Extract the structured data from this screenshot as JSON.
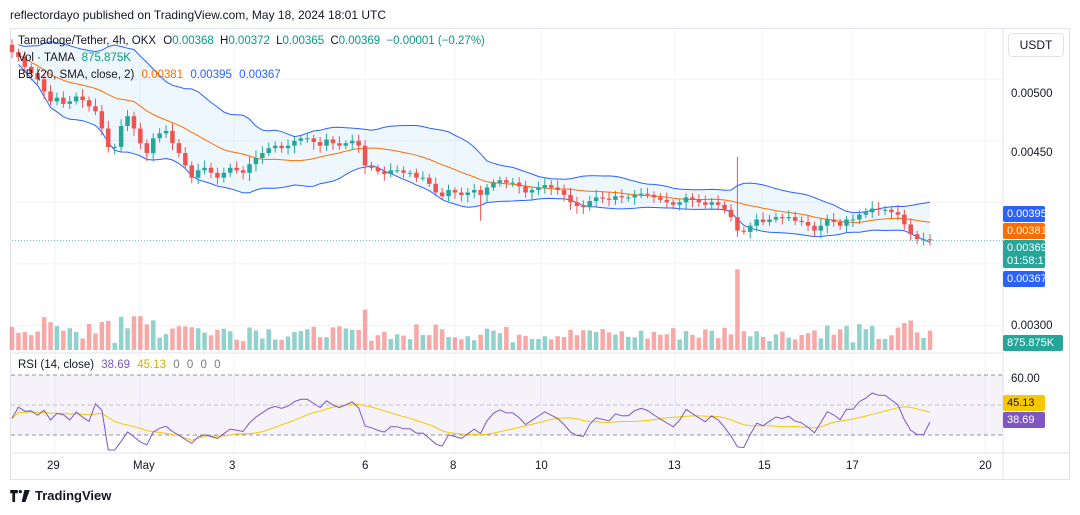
{
  "publisher_line": "reflectordayo published on TradingView.com, May 18, 2024 18:01 UTC",
  "legend": {
    "symbol": "Tamadoge/Tether, 4h, OKX",
    "o_label": "O",
    "o_value": "0.00368",
    "h_label": "H",
    "h_value": "0.00372",
    "l_label": "L",
    "l_value": "0.00365",
    "c_label": "C",
    "c_value": "0.00369",
    "change": "−0.00001 (−0.27%)",
    "vol_label": "Vol · TAMA",
    "vol_value": "875.875K",
    "bb_label": "BB (20, SMA, close, 2)",
    "bb_basis": "0.00381",
    "bb_upper": "0.00395",
    "bb_lower": "0.00367",
    "rsi_label": "RSI (14, close)",
    "rsi_value": "38.69",
    "rsi_ma": "45.13",
    "rsi_extra": [
      "0",
      "0",
      "0",
      "0"
    ]
  },
  "currency": "USDT",
  "price_ticks": [
    "0.00500",
    "0.00450",
    "0.00300"
  ],
  "rsi_ticks": [
    "60.00"
  ],
  "time_ticks": [
    "29",
    "May",
    "3",
    "6",
    "8",
    "10",
    "13",
    "15",
    "17",
    "20"
  ],
  "badges": {
    "bb_upper": "0.00395",
    "bb_basis": "0.00381",
    "price": "0.00369",
    "countdown": "01:58:17",
    "bb_lower": "0.00367",
    "volume": "875.875K",
    "rsi_ma": "45.13",
    "rsi": "38.69"
  },
  "colors": {
    "up": "#26a69a",
    "down": "#ef5350",
    "bb_band": "#2962ff",
    "bb_basis": "#ff6d00",
    "rsi_line": "#7e57c2",
    "rsi_ma": "#f5c800",
    "price_badge": "#26a69a",
    "volume_badge": "#26a69a"
  },
  "brand": "TradingView",
  "chart_data": {
    "type": "candlestick",
    "symbol": "Tamadoge/Tether",
    "interval": "4h",
    "exchange": "OKX",
    "price_range": [
      0.0028,
      0.0054
    ],
    "indicators": [
      "Volume",
      "Bollinger Bands (20, SMA, close, 2)",
      "RSI (14, close)"
    ],
    "close": [
      0.00522,
      0.00518,
      0.0051,
      0.00505,
      0.005,
      0.0049,
      0.00482,
      0.00485,
      0.0048,
      0.00482,
      0.00486,
      0.00483,
      0.00478,
      0.00474,
      0.0046,
      0.00445,
      0.00445,
      0.00462,
      0.0047,
      0.0046,
      0.00448,
      0.0044,
      0.00452,
      0.00456,
      0.00458,
      0.00448,
      0.0044,
      0.0043,
      0.0042,
      0.00426,
      0.00428,
      0.00424,
      0.0042,
      0.00424,
      0.00428,
      0.00426,
      0.00424,
      0.00431,
      0.00436,
      0.0044,
      0.00444,
      0.00446,
      0.00444,
      0.00446,
      0.0045,
      0.00452,
      0.00452,
      0.00449,
      0.00446,
      0.00451,
      0.00448,
      0.00446,
      0.00448,
      0.0045,
      0.00446,
      0.0043,
      0.00428,
      0.00425,
      0.00423,
      0.00426,
      0.00426,
      0.00424,
      0.00424,
      0.0042,
      0.0042,
      0.00415,
      0.00408,
      0.00405,
      0.0041,
      0.00408,
      0.00406,
      0.00408,
      0.0041,
      0.00406,
      0.00412,
      0.00416,
      0.00418,
      0.00416,
      0.00416,
      0.00413,
      0.00408,
      0.0041,
      0.00412,
      0.00414,
      0.00412,
      0.0041,
      0.00406,
      0.004,
      0.00397,
      0.00396,
      0.00401,
      0.00404,
      0.00403,
      0.00402,
      0.00405,
      0.00404,
      0.00404,
      0.00406,
      0.00407,
      0.00406,
      0.00404,
      0.00402,
      0.004,
      0.00398,
      0.004,
      0.00404,
      0.00402,
      0.004,
      0.00398,
      0.004,
      0.00398,
      0.00394,
      0.00388,
      0.00377,
      0.00376,
      0.00381,
      0.00386,
      0.00384,
      0.00386,
      0.00388,
      0.00387,
      0.00388,
      0.00385,
      0.00384,
      0.00381,
      0.00377,
      0.00381,
      0.00386,
      0.00384,
      0.00381,
      0.00386,
      0.00386,
      0.0039,
      0.00392,
      0.00395,
      0.00394,
      0.00394,
      0.00392,
      0.0039,
      0.00382,
      0.00374,
      0.0037,
      0.0037,
      0.00369
    ],
    "volume_range": [
      0,
      2000000
    ],
    "rsi_range": [
      20,
      80
    ],
    "rsi_current": 38.69,
    "rsi_ma_current": 45.13
  }
}
